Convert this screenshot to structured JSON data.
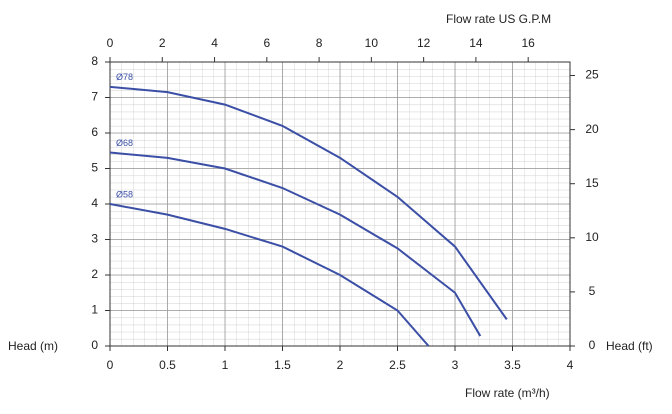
{
  "chart_data": {
    "type": "line",
    "x_label": "Flow rate (m³/h)",
    "y_label": "Head (m)",
    "y2_label": "Head (ft)",
    "x2_label": "Flow rate US  G.P.M",
    "xlim": [
      0,
      4
    ],
    "xticks": [
      0,
      0.5,
      1,
      1.5,
      2,
      2.5,
      3,
      3.5,
      4
    ],
    "ylim": [
      0,
      8
    ],
    "yticks": [
      0,
      1,
      2,
      3,
      4,
      5,
      6,
      7,
      8
    ],
    "x2lim": [
      0,
      17.6
    ],
    "x2ticks": [
      0,
      2,
      4,
      6,
      8,
      10,
      12,
      14,
      16
    ],
    "y2lim": [
      0,
      26.25
    ],
    "y2ticks": [
      0,
      5,
      10,
      15,
      20,
      25
    ],
    "grid": true,
    "series": [
      {
        "name": "Ø78",
        "color": "#3b4fa6",
        "x": [
          0,
          0.5,
          1,
          1.5,
          2,
          2.5,
          3,
          3.45
        ],
        "values": [
          7.3,
          7.15,
          6.8,
          6.2,
          5.3,
          4.2,
          2.8,
          0.75
        ]
      },
      {
        "name": "Ø68",
        "color": "#3b4fa6",
        "x": [
          0,
          0.5,
          1,
          1.5,
          2,
          2.5,
          3,
          3.22
        ],
        "values": [
          5.45,
          5.3,
          5.0,
          4.45,
          3.7,
          2.75,
          1.5,
          0.28
        ]
      },
      {
        "name": "Ø58",
        "color": "#3b4fa6",
        "x": [
          0,
          0.5,
          1,
          1.5,
          2,
          2.5,
          2.77
        ],
        "values": [
          4.0,
          3.7,
          3.3,
          2.8,
          2.0,
          1.0,
          0.0
        ]
      }
    ]
  }
}
